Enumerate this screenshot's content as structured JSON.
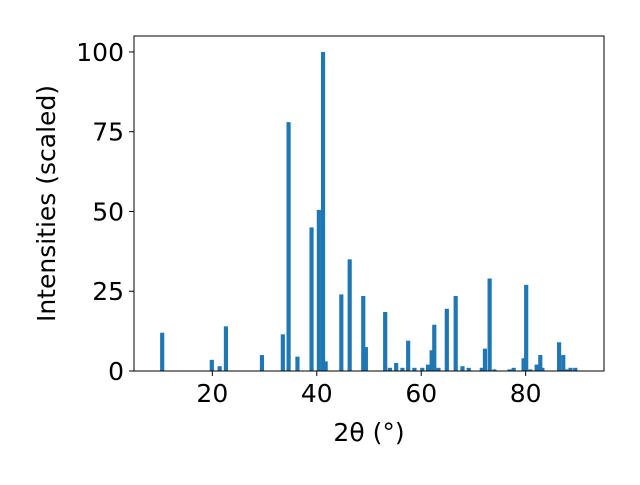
{
  "chart_data": {
    "type": "bar",
    "title": "",
    "xlabel": "2θ (°)",
    "ylabel": "Intensities (scaled)",
    "xlim": [
      5,
      95
    ],
    "ylim": [
      0,
      105
    ],
    "xticks": [
      20,
      40,
      60,
      80
    ],
    "yticks": [
      0,
      25,
      50,
      75,
      100
    ],
    "bar_width": 0.8,
    "bar_color": "#1f77b4",
    "grid": false,
    "series": [
      {
        "x": [
          10.4,
          19.9,
          21.4,
          22.6,
          29.5,
          33.5,
          34.6,
          36.3,
          39.0,
          40.4,
          41.2,
          41.7,
          44.7,
          46.3,
          48.9,
          49.4,
          53.1,
          54.0,
          55.2,
          56.4,
          57.5,
          58.7,
          60.2,
          61.3,
          62.0,
          62.5,
          63.3,
          64.9,
          66.6,
          67.9,
          69.1,
          71.6,
          72.2,
          73.1,
          74.0,
          76.9,
          77.7,
          79.6,
          80.1,
          80.9,
          82.1,
          82.8,
          83.2,
          86.4,
          87.2,
          87.9,
          88.6,
          89.5
        ],
        "values": [
          12,
          3.5,
          1.5,
          14,
          5,
          11.5,
          78,
          4.5,
          45,
          50.5,
          100,
          3,
          24,
          35,
          23.5,
          7.5,
          18.5,
          1,
          2.5,
          1,
          9.5,
          1,
          1,
          2,
          6.5,
          14.5,
          1,
          19.5,
          23.5,
          1.5,
          1,
          1,
          7,
          29,
          0.5,
          0.5,
          1,
          4,
          27,
          0.5,
          2,
          5,
          1,
          9,
          5,
          0.5,
          1,
          1
        ]
      }
    ]
  }
}
